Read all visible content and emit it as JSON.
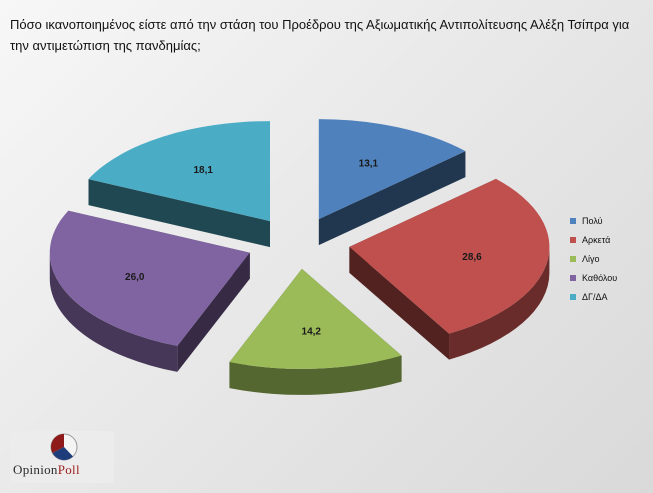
{
  "title": "Πόσο ικανοποιημένος είστε από την στάση του Προέδρου της Αξιωματικής Αντιπολίτευσης Αλέξη Τσίπρα για την αντιμετώπιση της πανδημίας;",
  "chart_data": {
    "type": "pie",
    "title": "Πόσο ικανοποιημένος είστε από την στάση του Προέδρου της Αξιωματικής Αντιπολίτευσης Αλέξη Τσίπρα για την αντιμετώπιση της πανδημίας;",
    "style": "3d-exploded",
    "legend_position": "right",
    "slices": [
      {
        "label": "Πολύ",
        "value": 13.1,
        "display": "13,1",
        "color": "#4f81bd"
      },
      {
        "label": "Αρκετά",
        "value": 28.6,
        "display": "28,6",
        "color": "#c0504d"
      },
      {
        "label": "Λίγο",
        "value": 14.2,
        "display": "14,2",
        "color": "#9bbb59"
      },
      {
        "label": "Καθόλου",
        "value": 26.0,
        "display": "26,0",
        "color": "#8064a2"
      },
      {
        "label": "ΔΓ/ΔΑ",
        "value": 18.1,
        "display": "18,1",
        "color": "#4bacc6"
      }
    ]
  },
  "logo": {
    "part1": "Opinion",
    "part2": "Poll"
  }
}
